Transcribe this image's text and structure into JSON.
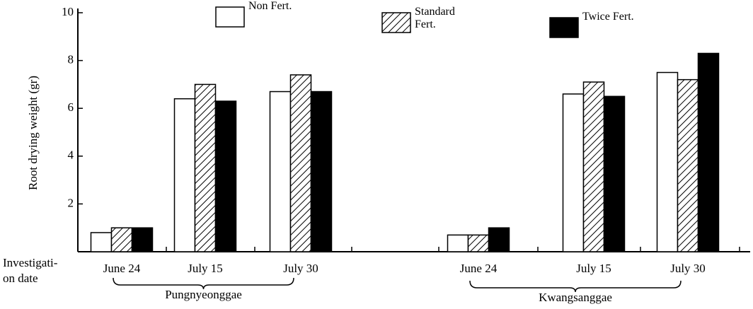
{
  "chart_data": {
    "type": "bar",
    "ylabel": "Root drying weight (gr)",
    "xlabel": [
      "Investigati-",
      "on date"
    ],
    "groups": [
      "Pungnyeonggae",
      "Kwangsanggae"
    ],
    "categories": [
      "June 24",
      "July 15",
      "July 30",
      "June 24",
      "July 15",
      "July 30"
    ],
    "series": [
      {
        "name": "Non Fert.",
        "color": "#ffffff",
        "values": [
          0.8,
          6.4,
          6.7,
          0.7,
          6.6,
          7.5
        ]
      },
      {
        "name": "Standard Fert.",
        "color": "#ffffff",
        "hatch": true,
        "values": [
          1.0,
          7.0,
          7.4,
          0.7,
          7.1,
          7.2
        ]
      },
      {
        "name": "Twice Fert.",
        "color": "#000000",
        "values": [
          1.0,
          6.3,
          6.7,
          1.0,
          6.5,
          8.3
        ]
      }
    ],
    "ylim": [
      0,
      10
    ],
    "yticks": [
      2,
      4,
      6,
      8,
      10
    ],
    "grid": false
  }
}
